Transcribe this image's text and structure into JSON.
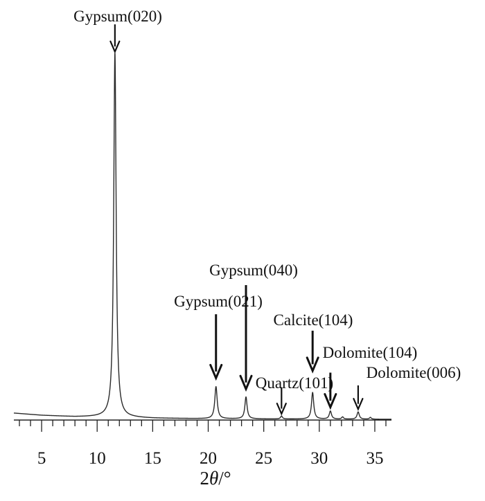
{
  "chart_data": {
    "type": "line",
    "title": "",
    "xlabel_main": "2",
    "xlabel_symbol": "θ",
    "xlabel_unit": "/°",
    "ylabel": "",
    "xlim": [
      2.5,
      36.5
    ],
    "ylim": [
      0,
      100
    ],
    "grid": false,
    "line_color": "#2a2a2a",
    "arrow_color": "#111111",
    "x_ticks": [
      5,
      10,
      15,
      20,
      25,
      30,
      35
    ],
    "x_tick_labels": [
      "5",
      "10",
      "15",
      "20",
      "25",
      "30",
      "35"
    ],
    "baseline": [
      {
        "x": 2.5,
        "y": 1.9
      },
      {
        "x": 5,
        "y": 1.3
      },
      {
        "x": 8,
        "y": 0.9
      },
      {
        "x": 11,
        "y": 0.85
      },
      {
        "x": 15,
        "y": 0.5
      },
      {
        "x": 20,
        "y": 0.35
      },
      {
        "x": 25,
        "y": 0.3
      },
      {
        "x": 30,
        "y": 0.25
      },
      {
        "x": 36.5,
        "y": 0.2
      }
    ],
    "peaks": [
      {
        "x": 11.6,
        "height": 100,
        "width": 0.13
      },
      {
        "x": 20.7,
        "height": 8.8,
        "width": 0.13
      },
      {
        "x": 23.4,
        "height": 6.0,
        "width": 0.12
      },
      {
        "x": 26.6,
        "height": 0.8,
        "width": 0.1
      },
      {
        "x": 29.4,
        "height": 7.3,
        "width": 0.12
      },
      {
        "x": 31.0,
        "height": 2.2,
        "width": 0.12
      },
      {
        "x": 32.1,
        "height": 0.6,
        "width": 0.1
      },
      {
        "x": 33.5,
        "height": 2.0,
        "width": 0.12
      },
      {
        "x": 34.6,
        "height": 0.5,
        "width": 0.1
      }
    ],
    "annotations": [
      {
        "label": "Gypsum(020)",
        "x": 11.6,
        "arrow_top": 108.5,
        "arrow_bottom": 101,
        "weight": "normal"
      },
      {
        "label": "Gypsum(021)",
        "x": 20.7,
        "arrow_top": 29,
        "arrow_bottom": 11.5,
        "weight": "bold"
      },
      {
        "label": "Gypsum(040)",
        "x": 23.4,
        "arrow_top": 37,
        "arrow_bottom": 8.5,
        "weight": "bold"
      },
      {
        "label": "Quartz(101)",
        "x": 26.6,
        "arrow_top": 9,
        "arrow_bottom": 1.7,
        "weight": "normal"
      },
      {
        "label": "Calcite(104)",
        "x": 29.4,
        "arrow_top": 24.5,
        "arrow_bottom": 13.5,
        "weight": "bold"
      },
      {
        "label": "Dolomite(104)",
        "x": 31.0,
        "arrow_top": 13,
        "arrow_bottom": 3.5,
        "weight": "bold"
      },
      {
        "label": "Dolomite(006)",
        "x": 33.5,
        "arrow_top": 9.5,
        "arrow_bottom": 3.0,
        "weight": "normal"
      }
    ]
  }
}
